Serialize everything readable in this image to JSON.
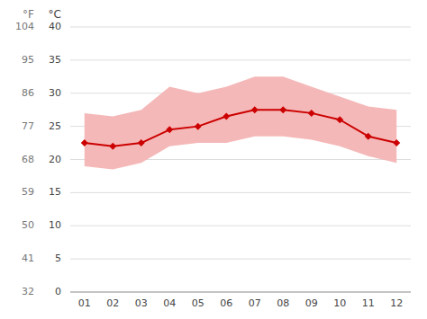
{
  "chart_data": {
    "type": "line",
    "categories": [
      "01",
      "02",
      "03",
      "04",
      "05",
      "06",
      "07",
      "08",
      "09",
      "10",
      "11",
      "12"
    ],
    "series": [
      {
        "type": "band",
        "color": "#f5b8b8",
        "low": [
          19.0,
          18.5,
          19.5,
          22.0,
          22.5,
          22.5,
          23.5,
          23.5,
          23.0,
          22.0,
          20.5,
          19.5
        ],
        "high": [
          27.0,
          26.5,
          27.5,
          31.0,
          30.0,
          31.0,
          32.5,
          32.5,
          31.0,
          29.5,
          28.0,
          27.5
        ]
      },
      {
        "type": "line",
        "color": "#cc0000",
        "marker": "diamond",
        "values": [
          22.5,
          22.0,
          22.5,
          24.5,
          25.0,
          26.5,
          27.5,
          27.5,
          27.0,
          26.0,
          23.5,
          22.5
        ]
      }
    ],
    "ylabel": "°C",
    "y2label": "°F",
    "ylim": [
      0,
      40
    ],
    "yticks": [
      0,
      5,
      10,
      15,
      20,
      25,
      30,
      35,
      40
    ],
    "y2lim": [
      32,
      104
    ],
    "y2ticks": [
      32,
      41,
      50,
      59,
      68,
      77,
      86,
      95,
      104
    ],
    "grid": true
  }
}
